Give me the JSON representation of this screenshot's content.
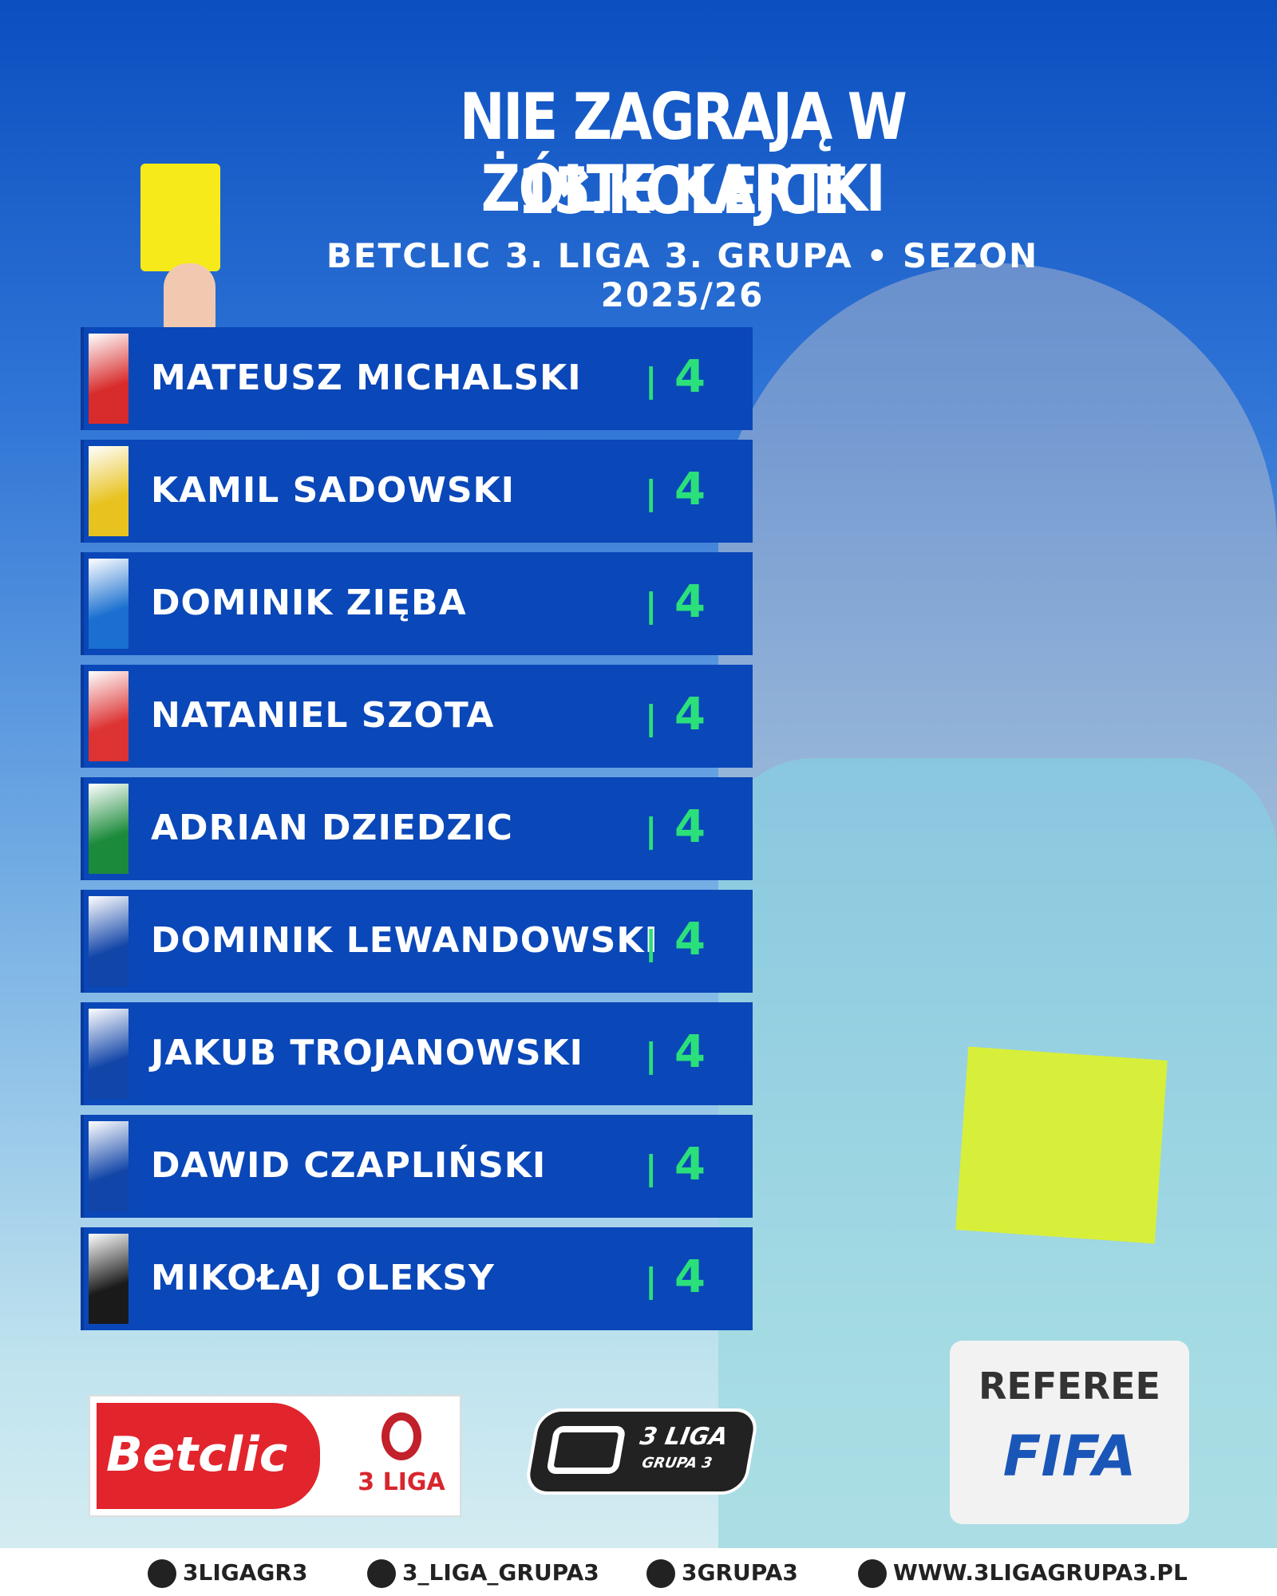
{
  "header": {
    "title_lines": [
      "NIE ZAGRAJĄ W 15.KOLEJCE",
      "ŻÓŁTE KARTKI"
    ],
    "subtitle": "BETCLIC 3. LIGA 3. GRUPA • SEZON 2025/26"
  },
  "separator": "|",
  "players": [
    {
      "name": "MATEUSZ MICHALSKI",
      "cards": 4
    },
    {
      "name": "KAMIL SADOWSKI",
      "cards": 4
    },
    {
      "name": "DOMINIK ZIĘBA",
      "cards": 4
    },
    {
      "name": "NATANIEL SZOTA",
      "cards": 4
    },
    {
      "name": "ADRIAN DZIEDZIC",
      "cards": 4
    },
    {
      "name": "DOMINIK LEWANDOWSKI",
      "cards": 4
    },
    {
      "name": "JAKUB TROJANOWSKI",
      "cards": 4
    },
    {
      "name": "DAWID CZAPLIŃSKI",
      "cards": 4
    },
    {
      "name": "MIKOŁAJ OLEKSY",
      "cards": 4
    }
  ],
  "logos": {
    "betclic": "Betclic",
    "liga": "3 LIGA",
    "grupa": [
      "3 LIGA",
      "GRUPA 3"
    ]
  },
  "photo_badge": [
    "REFEREE",
    "FIFA"
  ],
  "footer": [
    "3LIGAGR3",
    "3_LIGA_GRUPA3",
    "3GRUPA3",
    "WWW.3LIGAGRUPA3.PL"
  ]
}
